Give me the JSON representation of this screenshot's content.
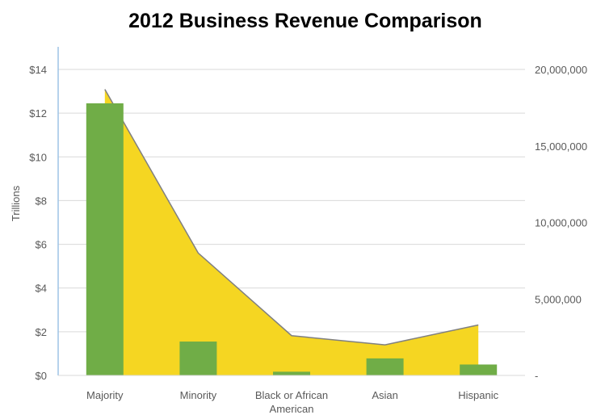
{
  "chart_data": {
    "type": "bar",
    "title": "2012 Business Revenue Comparison",
    "ylabel": "Trillions",
    "y2label": "",
    "categories": [
      "Majority",
      "Minority",
      "Black or African American",
      "Asian",
      "Hispanic"
    ],
    "category_label_lines": [
      [
        "Majority"
      ],
      [
        "Minority"
      ],
      [
        "Black or African",
        "American"
      ],
      [
        "Asian"
      ],
      [
        "Hispanic"
      ]
    ],
    "ylim": [
      0,
      14
    ],
    "y_ticks": [
      0,
      2,
      4,
      6,
      8,
      10,
      12,
      14
    ],
    "y_tick_labels": [
      "$0",
      "$2",
      "$4",
      "$6",
      "$8",
      "$10",
      "$12",
      "$14"
    ],
    "y2lim": [
      0,
      20000000
    ],
    "y2_ticks": [
      0,
      5000000,
      10000000,
      15000000,
      20000000
    ],
    "y2_tick_labels": [
      "-",
      "5,000,000",
      "10,000,000",
      "15,000,000",
      "20,000,000"
    ],
    "grid": true,
    "legend": "none",
    "series": [
      {
        "type": "bar",
        "axis": "left",
        "color": "#70AD47",
        "values": [
          12.45,
          1.55,
          0.17,
          0.78,
          0.5
        ]
      },
      {
        "type": "area",
        "axis": "right",
        "color": "#F5D622",
        "line_color": "#808080",
        "values": [
          18700000,
          8000000,
          2600000,
          2000000,
          3300000
        ]
      }
    ],
    "colors": {
      "grid": "#D9D9D9",
      "left_axis_line": "#9DC3E6",
      "text": "#595959"
    }
  }
}
